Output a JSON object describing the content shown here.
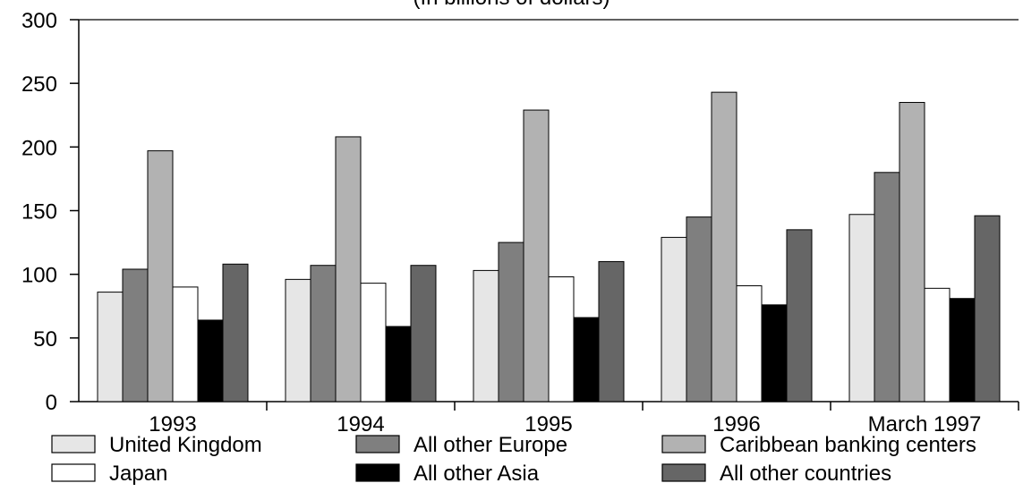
{
  "chart_data": {
    "type": "bar",
    "subtitle": "(In billions of dollars)",
    "categories": [
      "1993",
      "1994",
      "1995",
      "1996",
      "March 1997"
    ],
    "ylim": [
      0,
      300
    ],
    "yticks": [
      0,
      50,
      100,
      150,
      200,
      250,
      300
    ],
    "grid": false,
    "legend_position": "bottom",
    "series": [
      {
        "name": "United Kingdom",
        "color": "#e6e6e6",
        "values": [
          86,
          96,
          103,
          129,
          147
        ]
      },
      {
        "name": "All other Europe",
        "color": "#7f7f7f",
        "values": [
          104,
          107,
          125,
          145,
          180
        ]
      },
      {
        "name": "Caribbean banking centers",
        "color": "#b2b2b2",
        "values": [
          197,
          208,
          229,
          243,
          235
        ]
      },
      {
        "name": "Japan",
        "color": "#ffffff",
        "values": [
          90,
          93,
          98,
          91,
          89
        ]
      },
      {
        "name": "All other Asia",
        "color": "#000000",
        "values": [
          64,
          59,
          66,
          76,
          81
        ]
      },
      {
        "name": "All other countries",
        "color": "#666666",
        "values": [
          108,
          107,
          110,
          135,
          146
        ]
      }
    ]
  }
}
